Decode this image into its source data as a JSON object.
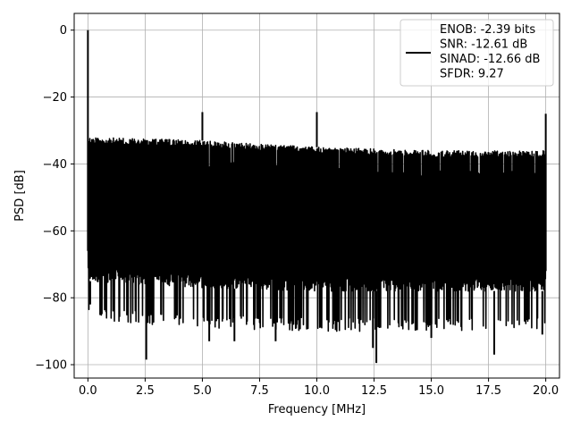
{
  "chart_data": {
    "type": "line",
    "xlabel": "Frequency [MHz]",
    "ylabel": "PSD [dB]",
    "xlim": [
      -0.6,
      20.6
    ],
    "ylim": [
      -104,
      5
    ],
    "grid": true,
    "legend_position": "top-right",
    "x_ticks": [
      "0.0",
      "2.5",
      "5.0",
      "7.5",
      "10.0",
      "12.5",
      "15.0",
      "17.5",
      "20.0"
    ],
    "y_ticks": [
      "0",
      "−20",
      "−40",
      "−60",
      "−80",
      "−100"
    ],
    "x_tick_values": [
      0,
      2.5,
      5,
      7.5,
      10,
      12.5,
      15,
      17.5,
      20
    ],
    "y_tick_values": [
      0,
      -20,
      -40,
      -60,
      -80,
      -100
    ],
    "legend_lines": [
      "ENOB: -2.39 bits",
      "SNR: -12.61 dB",
      "SINAD: -12.66 dB",
      "SFDR: 9.27"
    ],
    "series": [
      {
        "color": "#000000",
        "noise_top": [
          [
            0.0,
            -32
          ],
          [
            5.0,
            -33
          ],
          [
            10.0,
            -35
          ],
          [
            15.0,
            -36
          ],
          [
            20.0,
            -36
          ]
        ],
        "noise_bottom": [
          [
            0.0,
            -75
          ],
          [
            5.0,
            -77
          ],
          [
            10.0,
            -78
          ],
          [
            15.0,
            -78
          ],
          [
            20.0,
            -78
          ]
        ],
        "spikes": [
          {
            "x": 0.0,
            "y": 0
          },
          {
            "x": 5.0,
            "y": -24.5
          },
          {
            "x": 10.0,
            "y": -24.5
          },
          {
            "x": 20.0,
            "y": -25
          }
        ],
        "dips": [
          {
            "x": 0.1,
            "y": -82
          },
          {
            "x": 2.55,
            "y": -98.5
          },
          {
            "x": 5.3,
            "y": -93
          },
          {
            "x": 6.4,
            "y": -93
          },
          {
            "x": 8.2,
            "y": -93
          },
          {
            "x": 12.6,
            "y": -99.5
          },
          {
            "x": 12.45,
            "y": -95
          },
          {
            "x": 15.0,
            "y": -92
          },
          {
            "x": 17.75,
            "y": -97
          },
          {
            "x": 19.85,
            "y": -91
          }
        ]
      }
    ]
  }
}
